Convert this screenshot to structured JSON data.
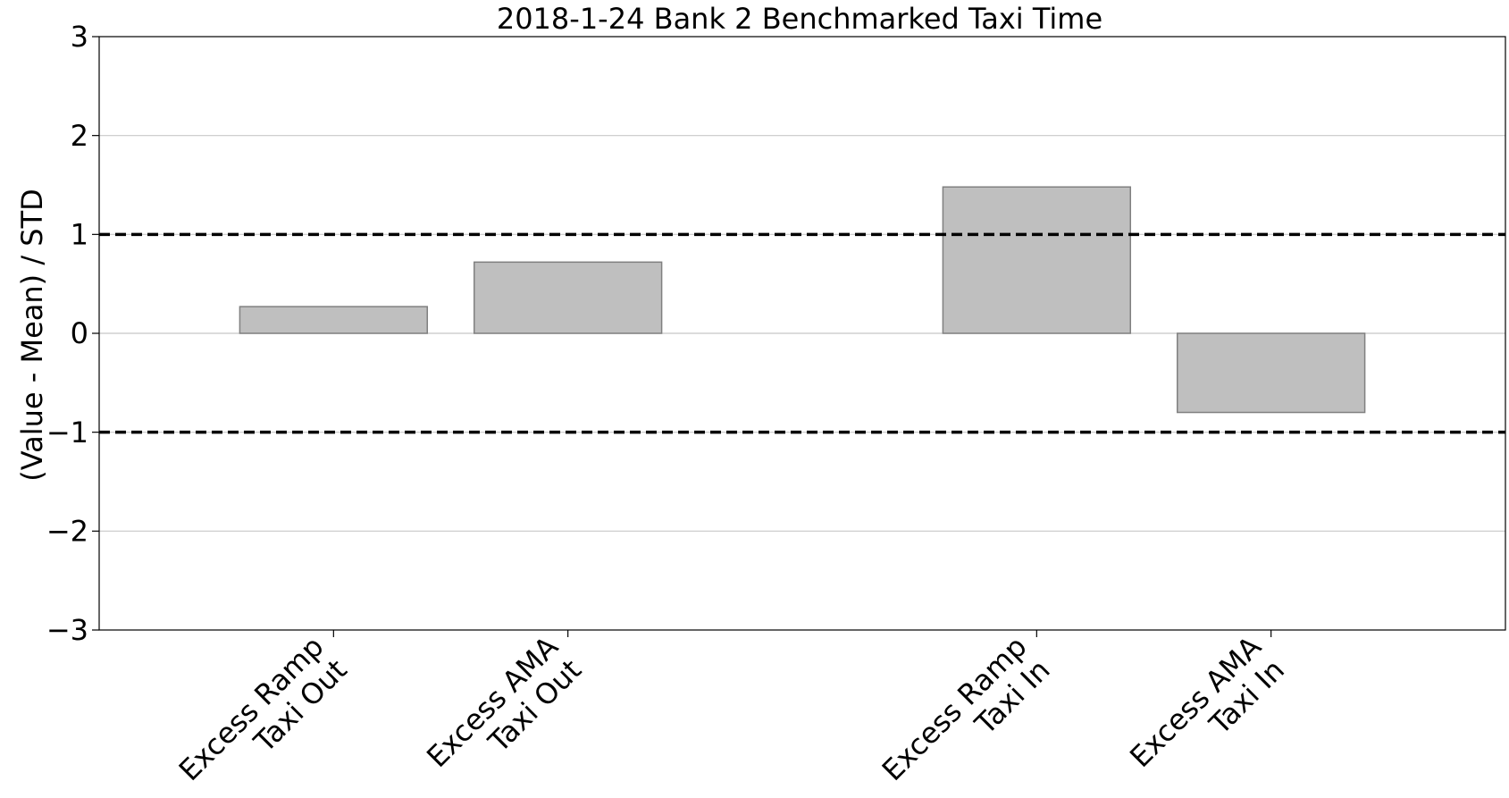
{
  "chart_data": {
    "type": "bar",
    "title": "2018-1-24 Bank 2 Benchmarked Taxi Time",
    "xlabel": "",
    "ylabel": "(Value - Mean) / STD",
    "ylim": [
      -3,
      3
    ],
    "yticks": [
      3,
      2,
      1,
      0,
      -1,
      -2,
      -3
    ],
    "ytick_labels": [
      "3",
      "2",
      "1",
      "0",
      "−1",
      "−2",
      "−3"
    ],
    "categories": [
      [
        "Excess Ramp",
        "Taxi Out"
      ],
      [
        "Excess AMA",
        "Taxi Out"
      ],
      [
        "Excess Ramp",
        "Taxi In"
      ],
      [
        "Excess AMA",
        "Taxi In"
      ]
    ],
    "x": [
      1,
      2,
      4,
      5
    ],
    "xlim": [
      -0.0,
      6.0
    ],
    "values": [
      0.27,
      0.72,
      1.48,
      -0.8
    ],
    "reference_lines": [
      1,
      -1
    ],
    "grid": "horizontal",
    "colors": {
      "bar_fill": "#bfbfbf",
      "bar_edge": "#808080",
      "grid": "#c8c8c8",
      "reference": "#000000"
    }
  }
}
